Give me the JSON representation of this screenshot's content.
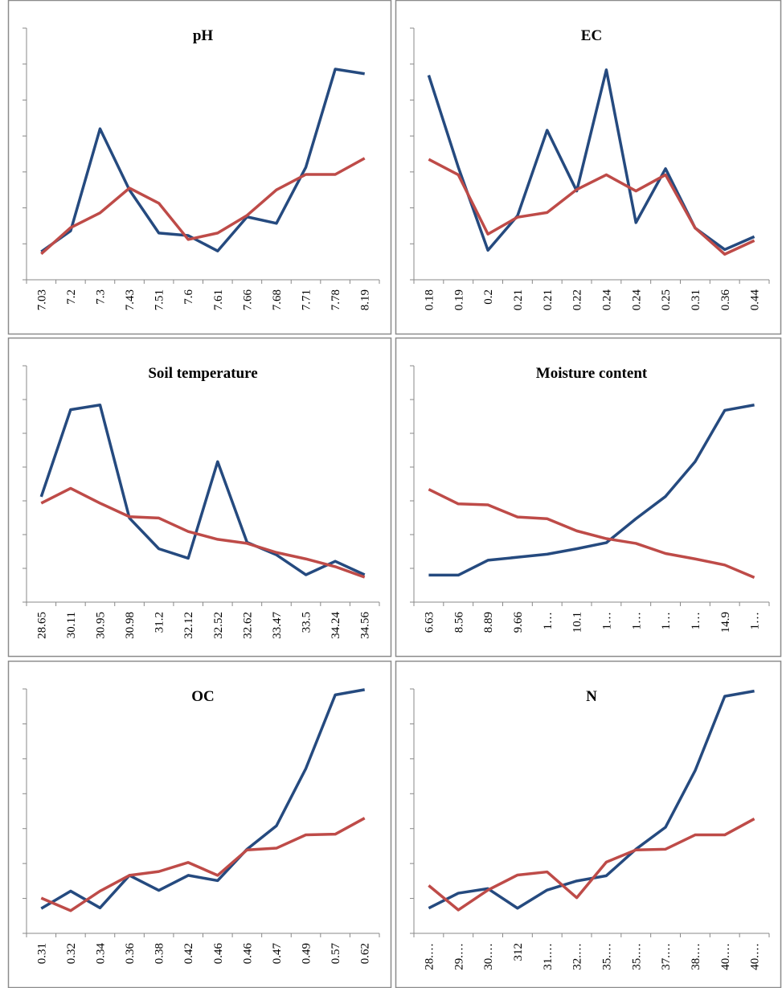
{
  "chart_data": [
    {
      "type": "line",
      "title": "pH",
      "categories": [
        "7.03",
        "7.2",
        "7.3",
        "7.43",
        "7.51",
        "7.6",
        "7.61",
        "7.66",
        "7.68",
        "7.71",
        "7.78",
        "8.19"
      ],
      "series": [
        {
          "color": "#254a7f",
          "values": [
            0.78,
            1.36,
            4.2,
            2.5,
            1.3,
            1.23,
            0.8,
            1.75,
            1.57,
            3.13,
            5.86,
            5.73
          ]
        },
        {
          "color": "#be4b48",
          "values": [
            0.72,
            1.45,
            1.86,
            2.55,
            2.13,
            1.12,
            1.3,
            1.79,
            2.5,
            2.93,
            2.93,
            3.38
          ]
        }
      ],
      "ylim": [
        0,
        7
      ],
      "yticks": [
        0,
        1,
        2,
        3,
        4,
        5,
        6,
        7
      ]
    },
    {
      "type": "line",
      "title": "EC",
      "categories": [
        "0.18",
        "0.19",
        "0.2",
        "0.21",
        "0.21",
        "0.22",
        "0.24",
        "0.24",
        "0.25",
        "0.31",
        "0.36",
        "0.44"
      ],
      "series": [
        {
          "color": "#254a7f",
          "values": [
            5.69,
            3.13,
            0.82,
            1.78,
            4.16,
            2.47,
            5.84,
            1.59,
            3.09,
            1.44,
            0.84,
            1.2
          ]
        },
        {
          "color": "#be4b48",
          "values": [
            3.35,
            2.92,
            1.27,
            1.74,
            1.87,
            2.51,
            2.92,
            2.47,
            2.92,
            1.44,
            0.71,
            1.09
          ]
        }
      ],
      "ylim": [
        0,
        7
      ],
      "yticks": [
        0,
        1,
        2,
        3,
        4,
        5,
        6,
        7
      ]
    },
    {
      "type": "line",
      "title": "Soil temperature",
      "categories": [
        "28.65",
        "30.11",
        "30.95",
        "30.98",
        "31.2",
        "32.12",
        "32.52",
        "32.62",
        "33.47",
        "33.5",
        "34.24",
        "34.56"
      ],
      "series": [
        {
          "color": "#254a7f",
          "values": [
            3.12,
            5.7,
            5.84,
            2.49,
            1.58,
            1.3,
            4.16,
            1.77,
            1.4,
            0.81,
            1.21,
            0.81
          ]
        },
        {
          "color": "#be4b48",
          "values": [
            2.93,
            3.37,
            2.93,
            2.53,
            2.49,
            2.09,
            1.86,
            1.74,
            1.47,
            1.28,
            1.05,
            0.74
          ]
        }
      ],
      "ylim": [
        0,
        7
      ],
      "yticks": [
        0,
        1,
        2,
        3,
        4,
        5,
        6,
        7
      ]
    },
    {
      "type": "line",
      "title": "Moisture content",
      "categories": [
        "6.63",
        "8.56",
        "8.89",
        "9.66",
        "1…",
        "10.1",
        "1…",
        "1…",
        "1…",
        "1…",
        "14.9",
        "1…"
      ],
      "series": [
        {
          "color": "#254a7f",
          "values": [
            0.8,
            0.8,
            1.24,
            1.33,
            1.42,
            1.58,
            1.76,
            2.47,
            3.13,
            4.16,
            5.68,
            5.84
          ]
        },
        {
          "color": "#be4b48",
          "values": [
            3.34,
            2.91,
            2.88,
            2.52,
            2.47,
            2.11,
            1.88,
            1.74,
            1.44,
            1.28,
            1.1,
            0.73
          ]
        }
      ],
      "ylim": [
        0,
        7
      ],
      "yticks": [
        0,
        1,
        2,
        3,
        4,
        5,
        6,
        7
      ]
    },
    {
      "type": "line",
      "title": "OC",
      "categories": [
        "0.31",
        "0.32",
        "0.34",
        "0.36",
        "0.38",
        "0.42",
        "0.46",
        "0.46",
        "0.47",
        "0.49",
        "0.57",
        "0.62"
      ],
      "series": [
        {
          "color": "#254a7f",
          "values": [
            0.71,
            1.21,
            0.73,
            1.66,
            1.23,
            1.66,
            1.51,
            2.41,
            3.08,
            4.72,
            6.83,
            6.98
          ]
        },
        {
          "color": "#be4b48",
          "values": [
            1.01,
            0.65,
            1.21,
            1.66,
            1.77,
            2.03,
            1.66,
            2.39,
            2.44,
            2.82,
            2.84,
            3.3
          ]
        }
      ],
      "ylim": [
        0,
        7
      ],
      "yticks": [
        0,
        1,
        2,
        3,
        4,
        5,
        6,
        7
      ]
    },
    {
      "type": "line",
      "title": "N",
      "categories": [
        "28.…",
        "29.…",
        "30.…",
        "312",
        "31.…",
        "32.…",
        "35.…",
        "35.…",
        "37.…",
        "38.…",
        "40.…",
        "40.…"
      ],
      "series": [
        {
          "color": "#254a7f",
          "values": [
            0.72,
            1.15,
            1.28,
            0.72,
            1.24,
            1.5,
            1.65,
            2.41,
            3.04,
            4.66,
            6.79,
            6.94
          ]
        },
        {
          "color": "#be4b48",
          "values": [
            1.37,
            0.67,
            1.24,
            1.67,
            1.76,
            1.02,
            2.04,
            2.39,
            2.41,
            2.82,
            2.82,
            3.28
          ]
        }
      ],
      "ylim": [
        0,
        7
      ],
      "yticks": [
        0,
        1,
        2,
        3,
        4,
        5,
        6,
        7
      ]
    }
  ]
}
